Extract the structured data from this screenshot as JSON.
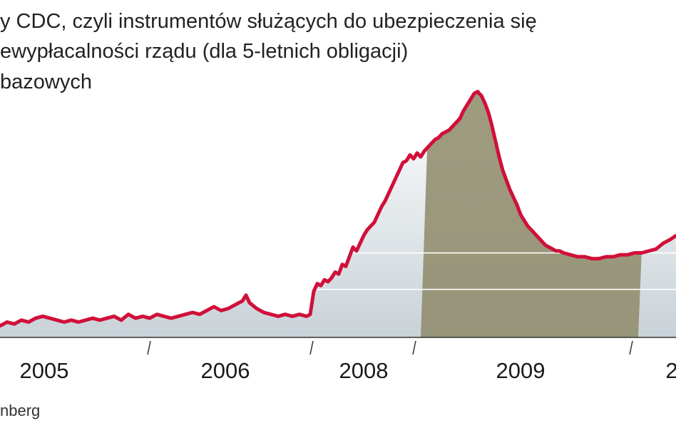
{
  "title_lines": [
    "y CDC, czyli instrumentów służących do ubezpieczenia się",
    "ewypłacalności rządu (dla 5-letnich obligacji)",
    "bazowych"
  ],
  "source": "nberg",
  "colors": {
    "line": "#d0103a",
    "area": "#c9d2d8",
    "area_highlight": "#8e8a68",
    "axis": "#333333",
    "grid": "#ffffff"
  },
  "chart_data": {
    "type": "area",
    "x_tick_labels": [
      "2005",
      "2006",
      "2008",
      "2009",
      "2"
    ],
    "series": [
      {
        "x": [
          0,
          10,
          20,
          30,
          40,
          50,
          60,
          70,
          80,
          90,
          100,
          110,
          120,
          130,
          140,
          150,
          160,
          170,
          180,
          190,
          200,
          210,
          220,
          230,
          240,
          250,
          260,
          270,
          280,
          290,
          300,
          310,
          320,
          330,
          340,
          345,
          350,
          360,
          370,
          380,
          390,
          400,
          410,
          420,
          430,
          435,
          440,
          445,
          450,
          455,
          460,
          465,
          470,
          475,
          480,
          485,
          490,
          495,
          500,
          505,
          510,
          515,
          520,
          525,
          530,
          535,
          540,
          545,
          550,
          555,
          560,
          565,
          570,
          575,
          580,
          585,
          590,
          595,
          600,
          605,
          610,
          615,
          620,
          625,
          630,
          635,
          640,
          645,
          650,
          655,
          660,
          665,
          670,
          672,
          675,
          680,
          685,
          690,
          695,
          700,
          705,
          710,
          715,
          720,
          725,
          730,
          735,
          740,
          745,
          750,
          755,
          760,
          765,
          770,
          775,
          780,
          785,
          790,
          800,
          810,
          820,
          830,
          840,
          850,
          860,
          870,
          880,
          890,
          900,
          910,
          920,
          930,
          940,
          948
        ],
        "y": [
          6,
          8,
          7,
          9,
          8,
          10,
          11,
          10,
          9,
          8,
          9,
          8,
          9,
          10,
          9,
          10,
          11,
          9,
          12,
          10,
          11,
          10,
          12,
          11,
          10,
          11,
          12,
          13,
          12,
          14,
          16,
          14,
          15,
          17,
          19,
          22,
          18,
          15,
          13,
          12,
          11,
          12,
          11,
          12,
          11,
          12,
          24,
          28,
          27,
          30,
          29,
          31,
          34,
          33,
          38,
          37,
          42,
          47,
          45,
          49,
          53,
          56,
          58,
          60,
          64,
          68,
          71,
          75,
          79,
          83,
          87,
          91,
          92,
          95,
          93,
          96,
          94,
          97,
          99,
          101,
          103,
          104,
          106,
          107,
          108,
          110,
          112,
          114,
          118,
          121,
          124,
          127,
          128,
          127,
          126,
          122,
          117,
          110,
          102,
          94,
          87,
          82,
          77,
          73,
          69,
          64,
          61,
          58,
          56,
          54,
          52,
          50,
          48,
          47,
          46,
          45,
          45,
          44,
          43,
          42,
          42,
          41,
          41,
          42,
          42,
          43,
          43,
          44,
          44,
          45,
          46,
          49,
          51,
          53
        ]
      }
    ],
    "highlight_ranges": [
      [
        590,
        895
      ]
    ],
    "ylim": [
      0,
      130
    ],
    "xlim": [
      0,
      948
    ],
    "grid": true,
    "legend": "none"
  }
}
